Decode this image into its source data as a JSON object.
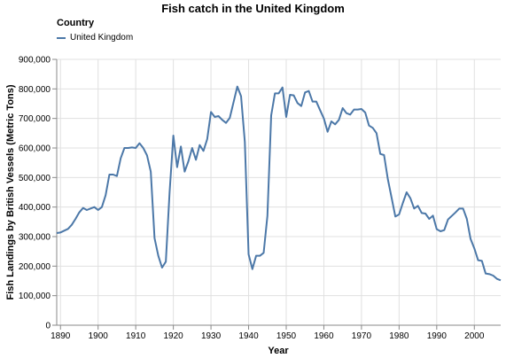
{
  "chart_data": {
    "type": "line",
    "title": "Fish catch in the United Kingdom",
    "xlabel": "Year",
    "ylabel": "Fish Landings by British Vessels (Metric Tons)",
    "legend_title": "Country",
    "legend_placement": "top-left",
    "grid": true,
    "xlim": [
      1889,
      2007
    ],
    "ylim": [
      0,
      900000
    ],
    "x_ticks": [
      "1890",
      "1900",
      "1910",
      "1920",
      "1930",
      "1940",
      "1950",
      "1960",
      "1970",
      "1980",
      "1990",
      "2000"
    ],
    "y_ticks": [
      "0",
      "100,000",
      "200,000",
      "300,000",
      "400,000",
      "500,000",
      "600,000",
      "700,000",
      "800,000",
      "900,000"
    ],
    "series": [
      {
        "name": "United Kingdom",
        "color": "#4c78a8",
        "x": [
          1889,
          1890,
          1891,
          1892,
          1893,
          1894,
          1895,
          1896,
          1897,
          1898,
          1899,
          1900,
          1901,
          1902,
          1903,
          1904,
          1905,
          1906,
          1907,
          1908,
          1909,
          1910,
          1911,
          1912,
          1913,
          1914,
          1915,
          1916,
          1917,
          1918,
          1919,
          1920,
          1921,
          1922,
          1923,
          1924,
          1925,
          1926,
          1927,
          1928,
          1929,
          1930,
          1931,
          1932,
          1933,
          1934,
          1935,
          1936,
          1937,
          1938,
          1939,
          1940,
          1941,
          1942,
          1943,
          1944,
          1945,
          1946,
          1947,
          1948,
          1949,
          1950,
          1951,
          1952,
          1953,
          1954,
          1955,
          1956,
          1957,
          1958,
          1959,
          1960,
          1961,
          1962,
          1963,
          1964,
          1965,
          1966,
          1967,
          1968,
          1969,
          1970,
          1971,
          1972,
          1973,
          1974,
          1975,
          1976,
          1977,
          1978,
          1979,
          1980,
          1981,
          1982,
          1983,
          1984,
          1985,
          1986,
          1987,
          1988,
          1989,
          1990,
          1991,
          1992,
          1993,
          1994,
          1995,
          1996,
          1997,
          1998,
          1999,
          2000,
          2001,
          2002,
          2003,
          2004,
          2005,
          2006,
          2007
        ],
        "values": [
          312000,
          314000,
          320000,
          326000,
          340000,
          360000,
          382000,
          397000,
          390000,
          395000,
          400000,
          390000,
          400000,
          440000,
          510000,
          510000,
          505000,
          565000,
          600000,
          600000,
          602000,
          600000,
          616000,
          600000,
          575000,
          520000,
          295000,
          235000,
          195000,
          215000,
          450000,
          642000,
          535000,
          605000,
          520000,
          555000,
          600000,
          560000,
          610000,
          590000,
          630000,
          722000,
          705000,
          708000,
          695000,
          685000,
          702000,
          755000,
          808000,
          775000,
          620000,
          240000,
          190000,
          235000,
          235000,
          245000,
          370000,
          710000,
          785000,
          785000,
          805000,
          705000,
          780000,
          778000,
          752000,
          742000,
          788000,
          793000,
          757000,
          757000,
          728000,
          700000,
          655000,
          690000,
          680000,
          695000,
          735000,
          718000,
          713000,
          730000,
          730000,
          732000,
          720000,
          676000,
          668000,
          650000,
          580000,
          576000,
          495000,
          432000,
          368000,
          375000,
          414000,
          450000,
          430000,
          395000,
          404000,
          380000,
          378000,
          360000,
          371000,
          325000,
          318000,
          322000,
          358000,
          370000,
          382000,
          395000,
          395000,
          360000,
          292000,
          260000,
          220000,
          218000,
          175000,
          173000,
          168000,
          157000,
          152000
        ]
      }
    ]
  }
}
